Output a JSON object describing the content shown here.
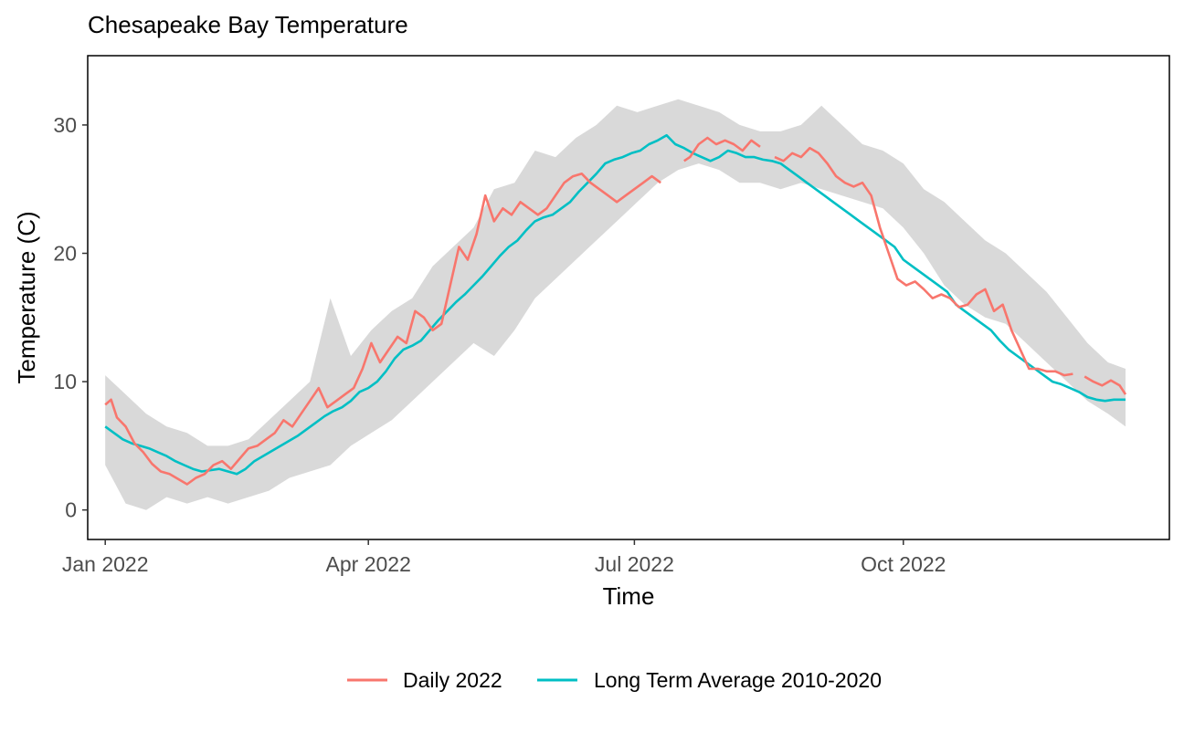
{
  "chart_data": {
    "type": "line",
    "title": "Chesapeake Bay Temperature",
    "xlabel": "Time",
    "ylabel": "Temperature (C)",
    "x_ticks": [
      "2022-01-01",
      "2022-04-01",
      "2022-07-01",
      "2022-10-01"
    ],
    "x_tick_labels": [
      "Jan 2022",
      "Apr 2022",
      "Jul 2022",
      "Oct 2022"
    ],
    "xlim": [
      "2021-12-26",
      "2022-12-31"
    ],
    "y_ticks": [
      0,
      10,
      20,
      30
    ],
    "ylim": [
      -2.3,
      35.4
    ],
    "grid": false,
    "legend_position": "bottom",
    "colors": {
      "daily": "#F8766D",
      "average": "#00BFC4",
      "band": "#d9d9d9"
    },
    "band": {
      "x": [
        "2022-01-01",
        "2022-01-08",
        "2022-01-15",
        "2022-01-22",
        "2022-01-29",
        "2022-02-05",
        "2022-02-12",
        "2022-02-19",
        "2022-02-26",
        "2022-03-05",
        "2022-03-12",
        "2022-03-19",
        "2022-03-26",
        "2022-04-02",
        "2022-04-09",
        "2022-04-16",
        "2022-04-23",
        "2022-04-30",
        "2022-05-07",
        "2022-05-14",
        "2022-05-21",
        "2022-05-28",
        "2022-06-04",
        "2022-06-11",
        "2022-06-18",
        "2022-06-25",
        "2022-07-02",
        "2022-07-09",
        "2022-07-16",
        "2022-07-23",
        "2022-07-30",
        "2022-08-06",
        "2022-08-13",
        "2022-08-20",
        "2022-08-27",
        "2022-09-03",
        "2022-09-10",
        "2022-09-17",
        "2022-09-24",
        "2022-10-01",
        "2022-10-08",
        "2022-10-15",
        "2022-10-22",
        "2022-10-29",
        "2022-11-05",
        "2022-11-12",
        "2022-11-19",
        "2022-11-26",
        "2022-12-03",
        "2022-12-10",
        "2022-12-16"
      ],
      "lower": [
        3.5,
        0.5,
        0.0,
        1.0,
        0.5,
        1.0,
        0.5,
        1.0,
        1.5,
        2.5,
        3.0,
        3.5,
        5.0,
        6.0,
        7.0,
        8.5,
        10.0,
        11.5,
        13.0,
        12.0,
        14.0,
        16.5,
        18.0,
        19.5,
        21.0,
        22.5,
        24.0,
        25.5,
        26.5,
        27.0,
        26.5,
        25.5,
        25.5,
        25.0,
        25.5,
        25.0,
        24.5,
        24.0,
        23.5,
        22.0,
        20.0,
        17.5,
        16.0,
        15.0,
        14.5,
        13.0,
        11.5,
        10.0,
        8.5,
        7.5,
        6.5
      ],
      "upper": [
        10.5,
        9.0,
        7.5,
        6.5,
        6.0,
        5.0,
        5.0,
        5.5,
        7.0,
        8.5,
        10.0,
        16.5,
        12.0,
        14.0,
        15.5,
        16.5,
        19.0,
        20.5,
        22.0,
        25.0,
        25.5,
        28.0,
        27.5,
        29.0,
        30.0,
        31.5,
        31.0,
        31.5,
        32.0,
        31.5,
        31.0,
        30.0,
        29.5,
        29.5,
        30.0,
        31.5,
        30.0,
        28.5,
        28.0,
        27.0,
        25.0,
        24.0,
        22.5,
        21.0,
        20.0,
        18.5,
        17.0,
        15.0,
        13.0,
        11.5,
        11.0
      ]
    },
    "series": [
      {
        "name": "Daily 2022",
        "segments": [
          {
            "x": [
              "2022-01-01",
              "2022-01-03",
              "2022-01-05",
              "2022-01-08",
              "2022-01-11",
              "2022-01-14",
              "2022-01-17",
              "2022-01-20",
              "2022-01-23",
              "2022-01-26",
              "2022-01-29",
              "2022-02-01",
              "2022-02-04",
              "2022-02-07",
              "2022-02-10",
              "2022-02-13",
              "2022-02-16",
              "2022-02-19",
              "2022-02-22",
              "2022-02-25",
              "2022-02-28",
              "2022-03-03",
              "2022-03-06",
              "2022-03-09",
              "2022-03-12",
              "2022-03-15",
              "2022-03-18",
              "2022-03-21",
              "2022-03-24",
              "2022-03-27",
              "2022-03-30",
              "2022-04-02",
              "2022-04-05",
              "2022-04-08",
              "2022-04-11",
              "2022-04-14",
              "2022-04-17",
              "2022-04-20",
              "2022-04-23",
              "2022-04-26",
              "2022-04-29",
              "2022-05-02",
              "2022-05-05",
              "2022-05-08",
              "2022-05-11",
              "2022-05-14",
              "2022-05-17",
              "2022-05-20",
              "2022-05-23",
              "2022-05-26",
              "2022-05-29",
              "2022-06-01",
              "2022-06-04",
              "2022-06-07",
              "2022-06-10",
              "2022-06-13",
              "2022-06-16",
              "2022-06-19",
              "2022-06-22",
              "2022-06-25",
              "2022-06-28",
              "2022-07-01",
              "2022-07-04",
              "2022-07-07",
              "2022-07-10"
            ],
            "y": [
              8.2,
              8.6,
              7.2,
              6.5,
              5.2,
              4.5,
              3.6,
              3.0,
              2.8,
              2.4,
              2.0,
              2.5,
              2.8,
              3.5,
              3.8,
              3.2,
              4.0,
              4.8,
              5.0,
              5.5,
              6.0,
              7.0,
              6.5,
              7.5,
              8.5,
              9.5,
              8.0,
              8.5,
              9.0,
              9.5,
              11.0,
              13.0,
              11.5,
              12.5,
              13.5,
              13.0,
              15.5,
              15.0,
              14.0,
              14.5,
              17.5,
              20.5,
              19.5,
              21.5,
              24.5,
              22.5,
              23.5,
              23.0,
              24.0,
              23.5,
              23.0,
              23.5,
              24.5,
              25.5,
              26.0,
              26.2,
              25.5,
              25.0,
              24.5,
              24.0,
              24.5,
              25.0,
              25.5,
              26.0,
              25.5
            ]
          },
          {
            "x": [
              "2022-07-18",
              "2022-07-20",
              "2022-07-23",
              "2022-07-26",
              "2022-07-29",
              "2022-08-01",
              "2022-08-04",
              "2022-08-07",
              "2022-08-10",
              "2022-08-13"
            ],
            "y": [
              27.2,
              27.5,
              28.5,
              29.0,
              28.5,
              28.8,
              28.5,
              28.0,
              28.8,
              28.3
            ]
          },
          {
            "x": [
              "2022-08-18",
              "2022-08-21",
              "2022-08-24",
              "2022-08-27",
              "2022-08-30",
              "2022-09-02",
              "2022-09-05",
              "2022-09-08",
              "2022-09-11",
              "2022-09-14",
              "2022-09-17",
              "2022-09-20",
              "2022-09-23",
              "2022-09-26",
              "2022-09-29",
              "2022-10-02",
              "2022-10-05",
              "2022-10-08",
              "2022-10-11",
              "2022-10-14",
              "2022-10-17",
              "2022-10-20",
              "2022-10-23",
              "2022-10-26",
              "2022-10-29",
              "2022-11-01",
              "2022-11-04",
              "2022-11-07",
              "2022-11-10",
              "2022-11-13",
              "2022-11-16",
              "2022-11-19",
              "2022-11-22",
              "2022-11-25",
              "2022-11-28"
            ],
            "y": [
              27.5,
              27.2,
              27.8,
              27.5,
              28.2,
              27.8,
              27.0,
              26.0,
              25.5,
              25.2,
              25.5,
              24.5,
              22.0,
              20.0,
              18.0,
              17.5,
              17.8,
              17.2,
              16.5,
              16.8,
              16.5,
              15.8,
              16.0,
              16.8,
              17.2,
              15.5,
              16.0,
              14.0,
              12.5,
              11.0,
              11.0,
              10.8,
              10.8,
              10.5,
              10.6
            ]
          },
          {
            "x": [
              "2022-12-02",
              "2022-12-05",
              "2022-12-08",
              "2022-12-11",
              "2022-12-14",
              "2022-12-16"
            ],
            "y": [
              10.4,
              10.0,
              9.7,
              10.1,
              9.7,
              9.0
            ]
          }
        ]
      },
      {
        "name": "Long Term Average 2010-2020",
        "segments": [
          {
            "x": [
              "2022-01-01",
              "2022-01-04",
              "2022-01-07",
              "2022-01-10",
              "2022-01-13",
              "2022-01-16",
              "2022-01-19",
              "2022-01-22",
              "2022-01-25",
              "2022-01-28",
              "2022-01-31",
              "2022-02-03",
              "2022-02-06",
              "2022-02-09",
              "2022-02-12",
              "2022-02-15",
              "2022-02-18",
              "2022-02-21",
              "2022-02-24",
              "2022-02-27",
              "2022-03-02",
              "2022-03-05",
              "2022-03-08",
              "2022-03-11",
              "2022-03-14",
              "2022-03-17",
              "2022-03-20",
              "2022-03-23",
              "2022-03-26",
              "2022-03-29",
              "2022-04-01",
              "2022-04-04",
              "2022-04-07",
              "2022-04-10",
              "2022-04-13",
              "2022-04-16",
              "2022-04-19",
              "2022-04-22",
              "2022-04-25",
              "2022-04-28",
              "2022-05-01",
              "2022-05-04",
              "2022-05-07",
              "2022-05-10",
              "2022-05-13",
              "2022-05-16",
              "2022-05-19",
              "2022-05-22",
              "2022-05-25",
              "2022-05-28",
              "2022-05-31",
              "2022-06-03",
              "2022-06-06",
              "2022-06-09",
              "2022-06-12",
              "2022-06-15",
              "2022-06-18",
              "2022-06-21",
              "2022-06-24",
              "2022-06-27",
              "2022-06-30",
              "2022-07-03",
              "2022-07-06",
              "2022-07-09",
              "2022-07-12",
              "2022-07-15",
              "2022-07-18",
              "2022-07-21",
              "2022-07-24",
              "2022-07-27",
              "2022-07-30",
              "2022-08-02",
              "2022-08-05",
              "2022-08-08",
              "2022-08-11",
              "2022-08-14",
              "2022-08-17",
              "2022-08-20",
              "2022-08-23",
              "2022-08-26",
              "2022-08-29",
              "2022-09-01",
              "2022-09-04",
              "2022-09-07",
              "2022-09-10",
              "2022-09-13",
              "2022-09-16",
              "2022-09-19",
              "2022-09-22",
              "2022-09-25",
              "2022-09-28",
              "2022-10-01",
              "2022-10-04",
              "2022-10-07",
              "2022-10-10",
              "2022-10-13",
              "2022-10-16",
              "2022-10-19",
              "2022-10-22",
              "2022-10-25",
              "2022-10-28",
              "2022-10-31",
              "2022-11-03",
              "2022-11-06",
              "2022-11-09",
              "2022-11-12",
              "2022-11-15",
              "2022-11-18",
              "2022-11-21",
              "2022-11-24",
              "2022-11-27",
              "2022-11-30",
              "2022-12-03",
              "2022-12-06",
              "2022-12-09",
              "2022-12-12",
              "2022-12-15",
              "2022-12-16"
            ],
            "y": [
              6.5,
              6.0,
              5.5,
              5.2,
              5.0,
              4.8,
              4.5,
              4.2,
              3.8,
              3.5,
              3.2,
              3.0,
              3.1,
              3.2,
              3.0,
              2.8,
              3.2,
              3.8,
              4.2,
              4.6,
              5.0,
              5.4,
              5.8,
              6.3,
              6.8,
              7.3,
              7.7,
              8.0,
              8.5,
              9.2,
              9.5,
              10.0,
              10.8,
              11.8,
              12.5,
              12.8,
              13.2,
              14.0,
              14.8,
              15.5,
              16.2,
              16.8,
              17.5,
              18.2,
              19.0,
              19.8,
              20.5,
              21.0,
              21.8,
              22.5,
              22.8,
              23.0,
              23.5,
              24.0,
              24.8,
              25.5,
              26.2,
              27.0,
              27.3,
              27.5,
              27.8,
              28.0,
              28.5,
              28.8,
              29.2,
              28.5,
              28.2,
              27.8,
              27.5,
              27.2,
              27.5,
              28.0,
              27.8,
              27.5,
              27.5,
              27.3,
              27.2,
              27.0,
              26.5,
              26.0,
              25.5,
              25.0,
              24.5,
              24.0,
              23.5,
              23.0,
              22.5,
              22.0,
              21.5,
              21.0,
              20.5,
              19.5,
              19.0,
              18.5,
              18.0,
              17.5,
              17.0,
              16.0,
              15.5,
              15.0,
              14.5,
              14.0,
              13.2,
              12.5,
              12.0,
              11.5,
              11.0,
              10.5,
              10.0,
              9.8,
              9.5,
              9.2,
              8.8,
              8.6,
              8.5,
              8.6,
              8.6,
              8.6
            ]
          }
        ]
      }
    ]
  }
}
